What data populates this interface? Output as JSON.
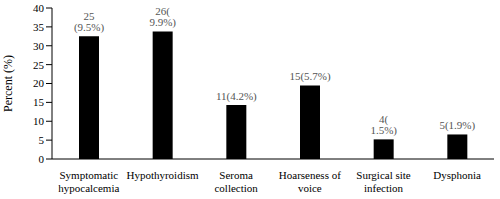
{
  "chart_data": {
    "type": "bar",
    "y_label": "Percent (%)",
    "categories": [
      "Symptomatic hypocalcemia",
      "Hypothyroidism",
      "Seroma collection",
      "Hoarseness of voice",
      "Surgical site infection",
      "Dysphonia"
    ],
    "values": [
      32.5,
      33.8,
      14.3,
      19.5,
      5.2,
      6.5
    ],
    "annotations": [
      "25 (9.5%)",
      "26( 9.9%)",
      "11(4.2%)",
      "15(5.7%)",
      "4( 1.5%)",
      "5(1.9%)"
    ],
    "color": "#000000",
    "ylim": [
      0,
      40
    ],
    "yticks": [
      0,
      5,
      10,
      15,
      20,
      25,
      30,
      35,
      40
    ],
    "grid": false
  }
}
